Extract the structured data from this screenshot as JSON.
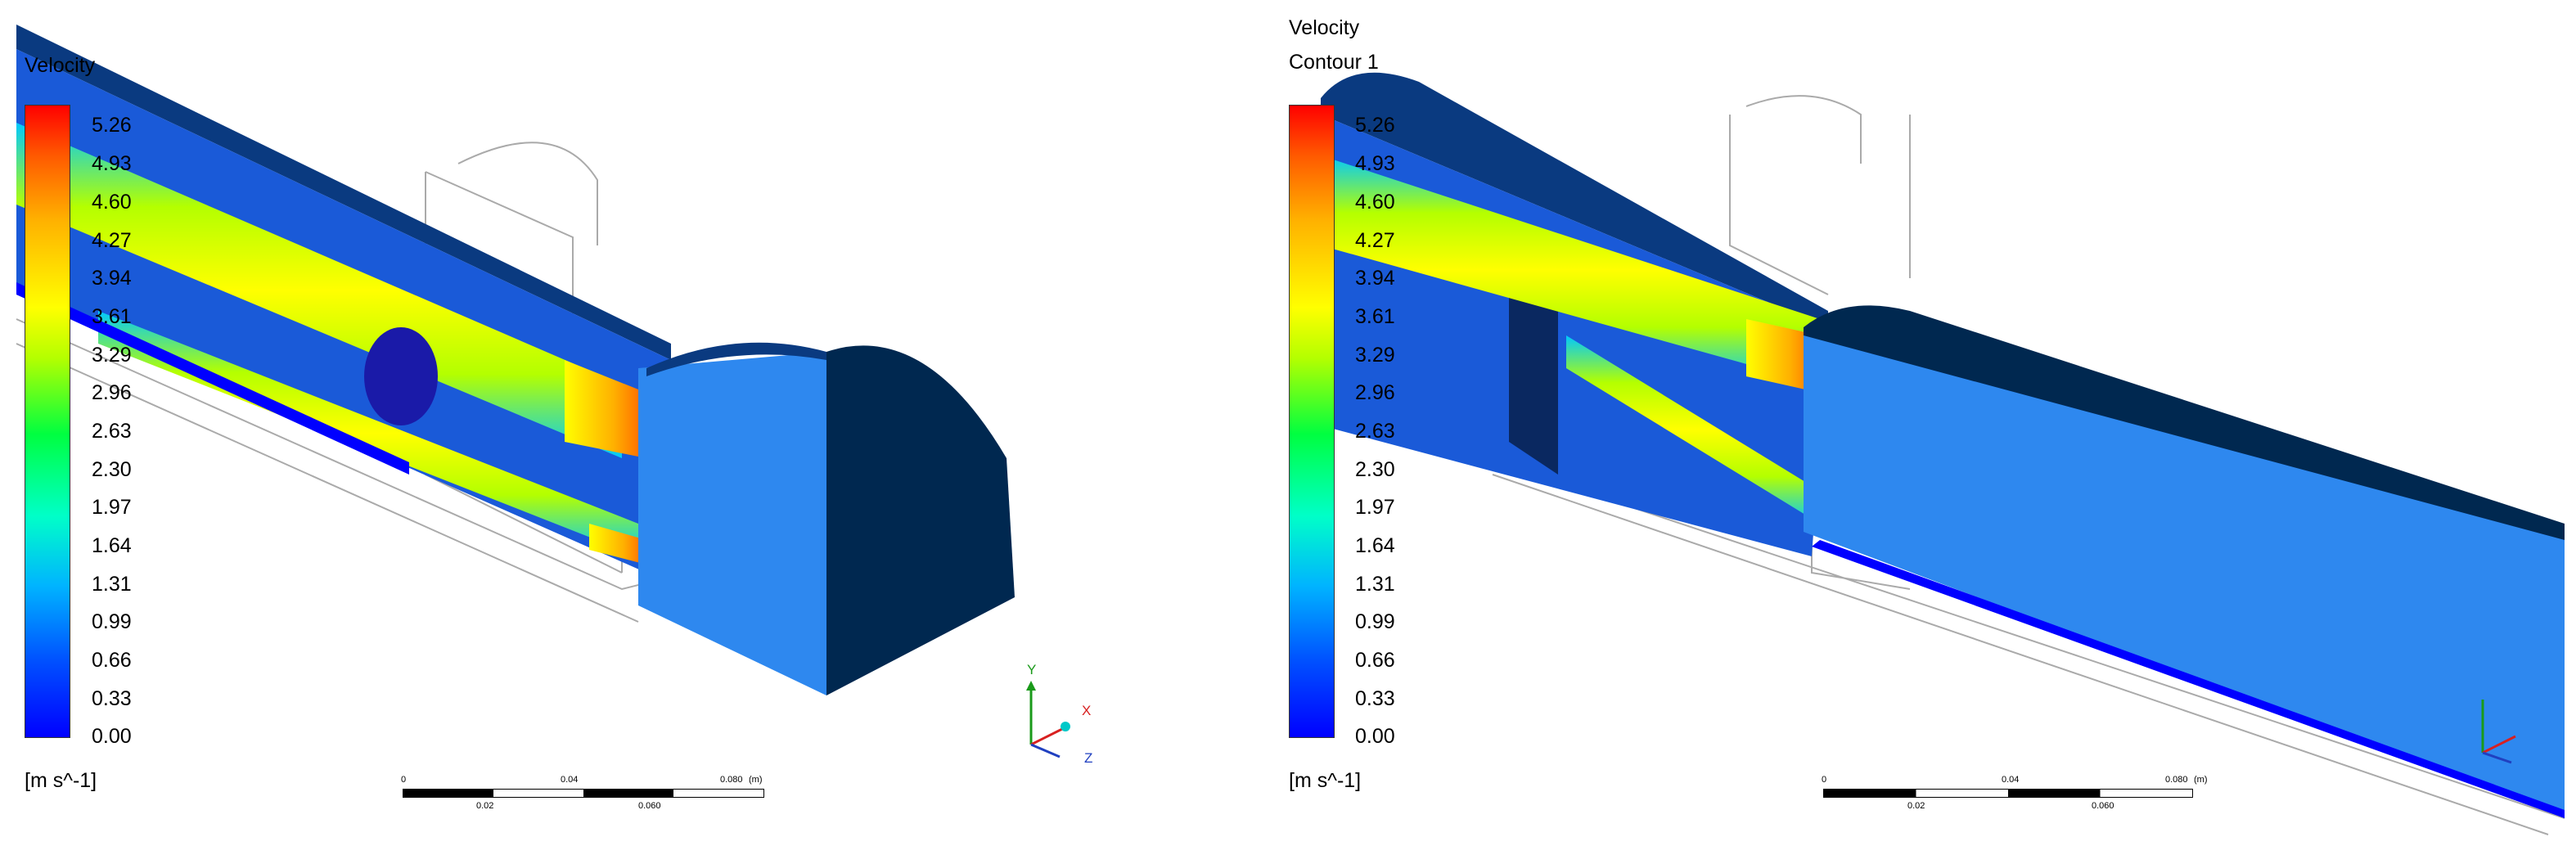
{
  "left": {
    "legend": {
      "title": "Velocity",
      "subtitle": "",
      "ticks": [
        "5.26",
        "4.93",
        "4.60",
        "4.27",
        "3.94",
        "3.61",
        "3.29",
        "2.96",
        "2.63",
        "2.30",
        "1.97",
        "1.64",
        "1.31",
        "0.99",
        "0.66",
        "0.33",
        "0.00"
      ],
      "units": "[m s^-1]"
    },
    "scale": {
      "top": [
        "0",
        "0.04",
        "0.080"
      ],
      "bottom": [
        "0.02",
        "0.060"
      ],
      "unit": "(m)"
    },
    "axes": {
      "y": "Y",
      "x": "X",
      "z": "Z"
    }
  },
  "right": {
    "legend": {
      "title": "Velocity",
      "subtitle": "Contour 1",
      "ticks": [
        "5.26",
        "4.93",
        "4.60",
        "4.27",
        "3.94",
        "3.61",
        "3.29",
        "2.96",
        "2.63",
        "2.30",
        "1.97",
        "1.64",
        "1.31",
        "0.99",
        "0.66",
        "0.33",
        "0.00"
      ],
      "units": "[m s^-1]"
    },
    "scale": {
      "top": [
        "0",
        "0.04",
        "0.080"
      ],
      "bottom": [
        "0.02",
        "0.060"
      ],
      "unit": "(m)"
    }
  },
  "colors": {
    "max": "#ff0000",
    "mid": "#ffff00",
    "low": "#00ffff",
    "min": "#0000ff",
    "body": "#002850"
  }
}
